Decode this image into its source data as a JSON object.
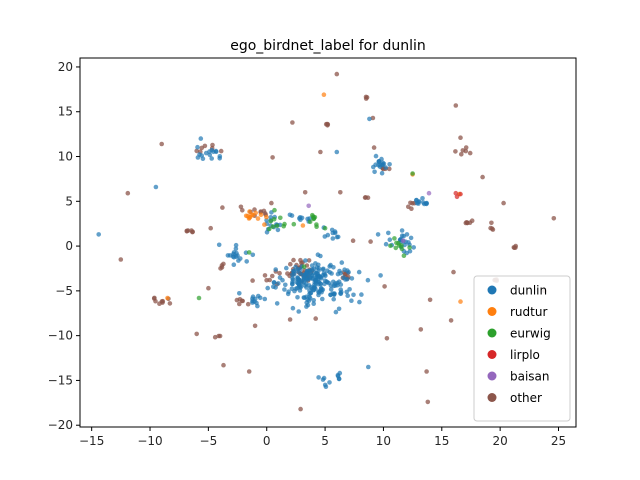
{
  "chart_data": {
    "type": "scatter",
    "title": "ego_birdnet_label for dunlin",
    "xlabel": "",
    "ylabel": "",
    "xlim": [
      -16,
      26.5
    ],
    "ylim": [
      -20.2,
      21
    ],
    "xticks": [
      -15,
      -10,
      -5,
      0,
      5,
      10,
      15,
      20,
      25
    ],
    "yticks": [
      -20,
      -15,
      -10,
      -5,
      0,
      5,
      10,
      15,
      20
    ],
    "grid": false,
    "legend_position": "lower-right",
    "series": [
      {
        "name": "dunlin",
        "color": "#1f77b4",
        "clusters": [
          {
            "center": [
              4.6,
              -4.2
            ],
            "spread": [
              1.6,
              1.2
            ],
            "count": 170
          },
          {
            "center": [
              3.2,
              -3.3
            ],
            "spread": [
              1.0,
              0.9
            ],
            "count": 45
          },
          {
            "center": [
              9.6,
              9.0
            ],
            "spread": [
              0.5,
              0.4
            ],
            "count": 18
          },
          {
            "center": [
              -4.9,
              10.6
            ],
            "spread": [
              0.7,
              0.5
            ],
            "count": 16
          },
          {
            "center": [
              13.3,
              5.0
            ],
            "spread": [
              0.4,
              0.3
            ],
            "count": 12
          },
          {
            "center": [
              0.8,
              2.6
            ],
            "spread": [
              0.5,
              0.6
            ],
            "count": 14
          },
          {
            "center": [
              11.6,
              0.2
            ],
            "spread": [
              0.8,
              0.7
            ],
            "count": 24
          },
          {
            "center": [
              -2.6,
              -1.0
            ],
            "spread": [
              0.8,
              0.6
            ],
            "count": 18
          },
          {
            "center": [
              -1.0,
              -5.8
            ],
            "spread": [
              0.5,
              0.5
            ],
            "count": 12
          },
          {
            "center": [
              5.6,
              1.4
            ],
            "spread": [
              0.5,
              0.3
            ],
            "count": 10
          },
          {
            "center": [
              3.4,
              3.2
            ],
            "spread": [
              0.6,
              0.4
            ],
            "count": 10
          },
          {
            "center": [
              5.0,
              -15.2
            ],
            "spread": [
              0.3,
              0.3
            ],
            "count": 6
          },
          {
            "center": [
              6.0,
              -14.7
            ],
            "spread": [
              0.2,
              0.3
            ],
            "count": 5
          }
        ],
        "points": [
          [
            -14.4,
            1.3
          ],
          [
            -9.5,
            6.6
          ],
          [
            8.7,
            -13.5
          ],
          [
            8.8,
            14.2
          ],
          [
            0.9,
            -6.4
          ],
          [
            6.2,
            -7.0
          ],
          [
            6.0,
            10.5
          ]
        ]
      },
      {
        "name": "rudtur",
        "color": "#ff7f0e",
        "clusters": [
          {
            "center": [
              -1.2,
              3.5
            ],
            "spread": [
              0.4,
              0.3
            ],
            "count": 12
          }
        ],
        "points": [
          [
            16.5,
            5.8
          ],
          [
            12.5,
            8.0
          ],
          [
            -8.5,
            -5.8
          ],
          [
            16.6,
            -6.2
          ],
          [
            4.9,
            16.9
          ],
          [
            -0.2,
            2.4
          ],
          [
            3.1,
            2.3
          ]
        ]
      },
      {
        "name": "eurwig",
        "color": "#2ca02c",
        "clusters": [
          {
            "center": [
              1.0,
              2.5
            ],
            "spread": [
              0.5,
              0.5
            ],
            "count": 10
          },
          {
            "center": [
              11.5,
              0.0
            ],
            "spread": [
              0.6,
              0.5
            ],
            "count": 10
          },
          {
            "center": [
              3.7,
              2.8
            ],
            "spread": [
              0.6,
              0.5
            ],
            "count": 8
          }
        ],
        "points": [
          [
            -5.8,
            -5.8
          ],
          [
            3.2,
            -2.3
          ],
          [
            12.5,
            8.1
          ],
          [
            -1.5,
            -0.7
          ],
          [
            5.0,
            2.0
          ]
        ]
      },
      {
        "name": "lirplo",
        "color": "#d62728",
        "clusters": [],
        "points": [
          [
            16.2,
            5.9
          ],
          [
            16.6,
            5.8
          ],
          [
            16.3,
            5.5
          ]
        ]
      },
      {
        "name": "baisan",
        "color": "#9467bd",
        "clusters": [],
        "points": [
          [
            13.9,
            5.9
          ],
          [
            3.6,
            4.5
          ],
          [
            11.7,
            0.6
          ]
        ]
      },
      {
        "name": "other",
        "color": "#8c564b",
        "clusters": [
          {
            "center": [
              2.7,
              -2.6
            ],
            "spread": [
              0.9,
              0.7
            ],
            "count": 35
          },
          {
            "center": [
              -1.0,
              3.8
            ],
            "spread": [
              0.5,
              0.3
            ],
            "count": 10
          },
          {
            "center": [
              -9.4,
              -6.0
            ],
            "spread": [
              0.5,
              0.3
            ],
            "count": 8
          },
          {
            "center": [
              -5.4,
              11.0
            ],
            "spread": [
              0.4,
              0.3
            ],
            "count": 6
          },
          {
            "center": [
              17.1,
              10.5
            ],
            "spread": [
              0.4,
              0.2
            ],
            "count": 6
          },
          {
            "center": [
              17.2,
              2.5
            ],
            "spread": [
              0.2,
              0.2
            ],
            "count": 6
          },
          {
            "center": [
              -6.6,
              1.7
            ],
            "spread": [
              0.2,
              0.1
            ],
            "count": 6
          },
          {
            "center": [
              19.7,
              -3.8
            ],
            "spread": [
              0.2,
              0.1
            ],
            "count": 4
          },
          {
            "center": [
              21.2,
              -0.1
            ],
            "spread": [
              0.1,
              0.1
            ],
            "count": 4
          },
          {
            "center": [
              10.3,
              8.6
            ],
            "spread": [
              0.3,
              0.1
            ],
            "count": 5
          },
          {
            "center": [
              5.2,
              13.6
            ],
            "spread": [
              0.1,
              0.1
            ],
            "count": 4
          },
          {
            "center": [
              8.6,
              16.6
            ],
            "spread": [
              0.1,
              0.1
            ],
            "count": 3
          },
          {
            "center": [
              19.2,
              2.2
            ],
            "spread": [
              0.1,
              0.2
            ],
            "count": 4
          },
          {
            "center": [
              12.3,
              4.8
            ],
            "spread": [
              0.4,
              0.3
            ],
            "count": 5
          },
          {
            "center": [
              6.5,
              -3.2
            ],
            "spread": [
              0.5,
              0.3
            ],
            "count": 8
          },
          {
            "center": [
              -4.2,
              -10.2
            ],
            "spread": [
              0.1,
              0.1
            ],
            "count": 3
          },
          {
            "center": [
              -2.1,
              -6.2
            ],
            "spread": [
              0.4,
              0.4
            ],
            "count": 6
          },
          {
            "center": [
              0.0,
              -3.8
            ],
            "spread": [
              0.5,
              0.4
            ],
            "count": 6
          },
          {
            "center": [
              8.5,
              5.5
            ],
            "spread": [
              0.2,
              0.1
            ],
            "count": 3
          },
          {
            "center": [
              -3.8,
              -2.2
            ],
            "spread": [
              0.2,
              0.3
            ],
            "count": 4
          }
        ],
        "points": [
          [
            -12.5,
            -1.5
          ],
          [
            -11.9,
            5.9
          ],
          [
            -9.0,
            11.4
          ],
          [
            -5.0,
            -4.7
          ],
          [
            -4.8,
            2.0
          ],
          [
            -6.0,
            -9.8
          ],
          [
            -3.7,
            -13.3
          ],
          [
            -1.5,
            -14.0
          ],
          [
            2.2,
            13.8
          ],
          [
            4.6,
            10.5
          ],
          [
            6.0,
            19.2
          ],
          [
            16.2,
            15.7
          ],
          [
            16.6,
            12.1
          ],
          [
            18.5,
            7.7
          ],
          [
            20.3,
            4.8
          ],
          [
            24.6,
            3.1
          ],
          [
            23.8,
            -5.0
          ],
          [
            15.8,
            -8.3
          ],
          [
            16.0,
            -2.9
          ],
          [
            13.2,
            -9.3
          ],
          [
            13.8,
            -17.4
          ],
          [
            10.3,
            -10.3
          ],
          [
            13.7,
            -14.0
          ],
          [
            2.9,
            -18.2
          ],
          [
            2.0,
            -8.2
          ],
          [
            -1.0,
            -8.9
          ],
          [
            0.4,
            4.8
          ],
          [
            -3.8,
            4.3
          ],
          [
            9.1,
            14.3
          ],
          [
            14.0,
            -6.0
          ],
          [
            7.4,
            0.6
          ],
          [
            8.9,
            0.5
          ],
          [
            6.3,
            6.0
          ],
          [
            9.2,
            11.0
          ],
          [
            0.5,
            9.9
          ],
          [
            -8.3,
            -6.4
          ],
          [
            10.1,
            -4.5
          ],
          [
            3.3,
            6.0
          ],
          [
            4.2,
            -8.1
          ],
          [
            -3.9,
            10.6
          ]
        ]
      }
    ]
  }
}
